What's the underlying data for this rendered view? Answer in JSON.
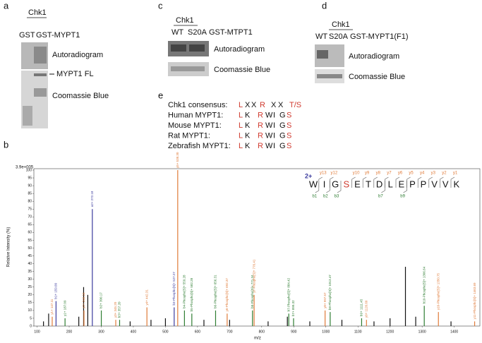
{
  "panels": {
    "a": {
      "label": "a",
      "header": "Chk1",
      "lanes": [
        "GST",
        "GST-MYPT1"
      ],
      "bands": [
        "Autoradiogram",
        "MYPT1 FL",
        "Coomassie Blue"
      ]
    },
    "c": {
      "label": "c",
      "header": "Chk1",
      "lanes": [
        "WT",
        "S20A",
        "GST-MTPT1"
      ],
      "bands": [
        "Autoradiogram",
        "Coomassie Blue"
      ]
    },
    "d": {
      "label": "d",
      "header": "Chk1",
      "lanes": [
        "WT",
        "S20A",
        "GST-MYPT1(F1)"
      ],
      "bands": [
        "Autoradiogram",
        "Coomassie Blue"
      ]
    },
    "e": {
      "label": "e",
      "rows": [
        {
          "name": "Chk1 consensus:",
          "residues": [
            {
              "text": "L",
              "color": "#d03a2f"
            },
            {
              "text": "X",
              "color": "#111"
            },
            {
              "text": "X",
              "color": "#111"
            },
            {
              "text": "R",
              "color": "#d03a2f"
            },
            {
              "text": "X",
              "color": "#111"
            },
            {
              "text": "X",
              "color": "#111"
            },
            {
              "text": "T/S",
              "color": "#d03a2f"
            }
          ]
        },
        {
          "name": "Human MYPT1:",
          "residues": [
            {
              "text": "L",
              "color": "#d03a2f"
            },
            {
              "text": "K",
              "color": "#111"
            },
            {
              "text": "R",
              "color": "#d03a2f"
            },
            {
              "text": "W",
              "color": "#111"
            },
            {
              "text": "I",
              "color": "#111"
            },
            {
              "text": "G",
              "color": "#111"
            },
            {
              "text": "S",
              "color": "#d03a2f"
            }
          ]
        },
        {
          "name": "Mouse MYPT1:",
          "residues": [
            {
              "text": "L",
              "color": "#d03a2f"
            },
            {
              "text": "K",
              "color": "#111"
            },
            {
              "text": "R",
              "color": "#d03a2f"
            },
            {
              "text": "W",
              "color": "#111"
            },
            {
              "text": "I",
              "color": "#111"
            },
            {
              "text": "G",
              "color": "#111"
            },
            {
              "text": "S",
              "color": "#d03a2f"
            }
          ]
        },
        {
          "name": "Rat MYPT1:",
          "residues": [
            {
              "text": "L",
              "color": "#d03a2f"
            },
            {
              "text": "K",
              "color": "#111"
            },
            {
              "text": "R",
              "color": "#d03a2f"
            },
            {
              "text": "W",
              "color": "#111"
            },
            {
              "text": "I",
              "color": "#111"
            },
            {
              "text": "G",
              "color": "#111"
            },
            {
              "text": "S",
              "color": "#d03a2f"
            }
          ]
        },
        {
          "name": "Zebrafish MYPT1:",
          "residues": [
            {
              "text": "L",
              "color": "#d03a2f"
            },
            {
              "text": "K",
              "color": "#111"
            },
            {
              "text": "R",
              "color": "#d03a2f"
            },
            {
              "text": "W",
              "color": "#111"
            },
            {
              "text": "I",
              "color": "#111"
            },
            {
              "text": "G",
              "color": "#111"
            },
            {
              "text": "S",
              "color": "#d03a2f"
            }
          ]
        }
      ]
    }
  },
  "chart_data": {
    "type": "spectrum",
    "panel_label": "b",
    "scale_note": "3.9e+005",
    "ylabel": "Relative Intensity (%)",
    "xlabel": "m/z",
    "xlim": [
      90,
      1480
    ],
    "ylim": [
      0,
      100
    ],
    "xticks": [
      100,
      200,
      300,
      400,
      500,
      600,
      700,
      800,
      900,
      1000,
      1100,
      1200,
      1300,
      1400
    ],
    "yticks": [
      0,
      5,
      10,
      15,
      20,
      25,
      30,
      35,
      40,
      45,
      50,
      55,
      60,
      65,
      70,
      75,
      80,
      85,
      90,
      95,
      100
    ],
    "x": [
      120,
      136,
      147.11,
      159.09,
      187.09,
      230,
      245,
      246.16,
      258,
      272.18,
      300.17,
      345.2,
      357.2,
      390,
      442.31,
      455,
      500,
      527.27,
      538.3,
      559.28,
      582.28,
      620,
      656.31,
      692.37,
      700,
      771.34,
      776.41,
      820,
      880,
      884.42,
      899.32,
      950,
      997.57,
      1013.47,
      1050,
      1111.45,
      1126.6,
      1150,
      1200,
      1248,
      1280,
      1306.64,
      1350.75,
      1390,
      1463.69
    ],
    "values": [
      3,
      8,
      6,
      16,
      5,
      6,
      25,
      10,
      20,
      75,
      10,
      4,
      4,
      3,
      12,
      4,
      5,
      12,
      100,
      10,
      8,
      4,
      10,
      8,
      4,
      10,
      20,
      3,
      6,
      8,
      5,
      3,
      10,
      9,
      4,
      5,
      4,
      3,
      5,
      38,
      6,
      13,
      9,
      3,
      3
    ],
    "colors": [
      "#111",
      "#111",
      "#e07b39",
      "#3b3b9e",
      "#2e7d32",
      "#111",
      "#111",
      "#e07b39",
      "#111",
      "#3b3b9e",
      "#2e7d32",
      "#e07b39",
      "#2e7d32",
      "#111",
      "#e07b39",
      "#111",
      "#111",
      "#3b3b9e",
      "#e07b39",
      "#2e7d32",
      "#2e7d32",
      "#111",
      "#2e7d32",
      "#e07b39",
      "#111",
      "#2e7d32",
      "#e07b39",
      "#111",
      "#111",
      "#2e7d32",
      "#2e7d32",
      "#111",
      "#e07b39",
      "#2e7d32",
      "#111",
      "#2e7d32",
      "#e07b39",
      "#111",
      "#111",
      "#111",
      "#111",
      "#2e7d32",
      "#e07b39",
      "#111",
      "#e07b39"
    ],
    "peak_labels": [
      null,
      null,
      "y1+ 147.11",
      "b1+ 159.09",
      "y1+ 187.09",
      null,
      null,
      "y2+ 246.16",
      null,
      "a2+ 272.18",
      "b2+ 300.17",
      "y3+ 345.20",
      "b3+ 357.20",
      null,
      "y4+ 442.31",
      null,
      null,
      "b3-Phospho[S]+ 527.27",
      "y5+ 538.30",
      "b4-Phospho[S]+ 559.28",
      "b5-Phospho[S]+ 582.28",
      null,
      "b6-Phospho[S]+ 656.31",
      "y6-Phospho[S]+ 692.37",
      null,
      "b8-Phospho[S]+ 771.34",
      "y7-Phospho[S]+ 776.41",
      null,
      null,
      "b7-Phospho[S]+ 884.42",
      "b7+ 899.32",
      null,
      "y8+ 997.57",
      "b8-Phospho[S]+ 1013.47",
      null,
      "b9+ 1111.45",
      "y9+ 1126.60",
      null,
      null,
      null,
      null,
      "b10-Phospho[S]+ 1306.64",
      "y10-Phospho[S]+ 1350.75",
      null,
      "y11-Phospho[S]+ 1463.69"
    ],
    "sequence": {
      "charge": "2+",
      "residues": [
        "W",
        "I",
        "G",
        "S",
        "E",
        "T",
        "D",
        "L",
        "E",
        "P",
        "P",
        "V",
        "V",
        "K"
      ],
      "colors": [
        "#111",
        "#111",
        "#111",
        "#d03a2f",
        "#111",
        "#111",
        "#111",
        "#111",
        "#111",
        "#111",
        "#111",
        "#111",
        "#111",
        "#111"
      ],
      "y_ions": [
        "y13",
        "y12",
        "y10",
        "y9",
        "y8",
        "y7",
        "y6",
        "y5",
        "y4",
        "y3",
        "y2",
        "y1"
      ],
      "b_ions": [
        "b1",
        "b2",
        "b3",
        "b7",
        "b9"
      ]
    }
  }
}
